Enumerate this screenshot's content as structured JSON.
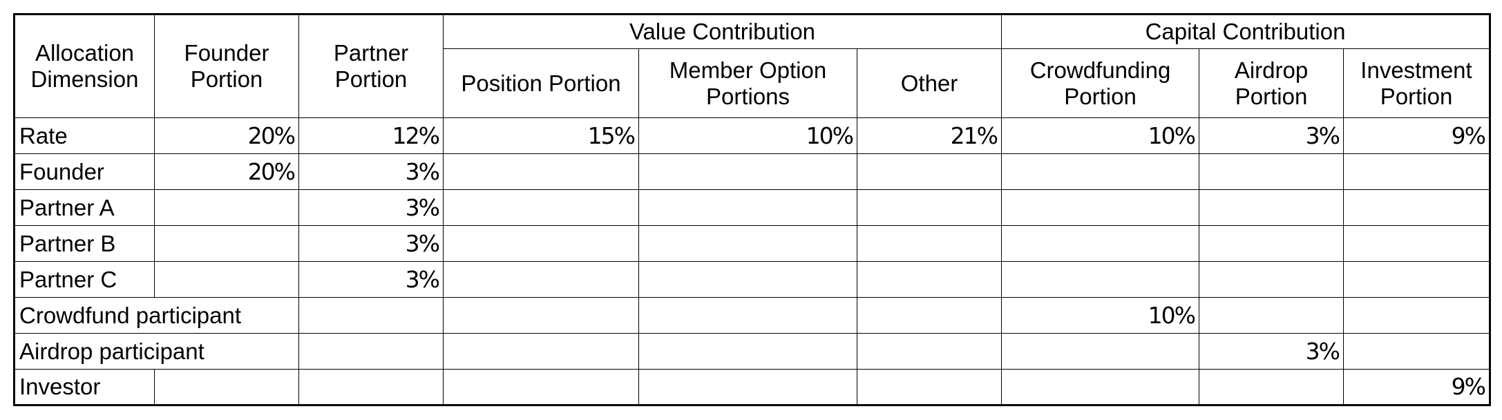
{
  "table": {
    "headers": {
      "allocation_dimension": "Allocation Dimension",
      "founder_portion": "Founder Portion",
      "partner_portion": "Partner Portion",
      "value_contribution": "Value Contribution",
      "capital_contribution": "Capital Contribution",
      "position_portion": "Position Portion",
      "member_option_portions": "Member Option Portions",
      "other": "Other",
      "crowdfunding_portion": "Crowdfunding Portion",
      "airdrop_portion": "Airdrop Portion",
      "investment_portion": "Investment Portion"
    },
    "rows": {
      "rate": {
        "label": "Rate",
        "founder": "20%",
        "partner": "12%",
        "position": "15%",
        "member_option": "10%",
        "other": "21%",
        "crowdfunding": "10%",
        "airdrop": "3%",
        "investment": "9%"
      },
      "founder": {
        "label": "Founder",
        "founder": "20%",
        "partner": "3%"
      },
      "partner_a": {
        "label": "Partner A",
        "partner": "3%"
      },
      "partner_b": {
        "label": "Partner B",
        "partner": "3%"
      },
      "partner_c": {
        "label": "Partner C",
        "partner": "3%"
      },
      "crowdfund_participant": {
        "label": "Crowdfund participant",
        "crowdfunding": "10%"
      },
      "airdrop_participant": {
        "label": "Airdrop participant",
        "airdrop": "3%"
      },
      "investor": {
        "label": "Investor",
        "investment": "9%"
      }
    }
  }
}
